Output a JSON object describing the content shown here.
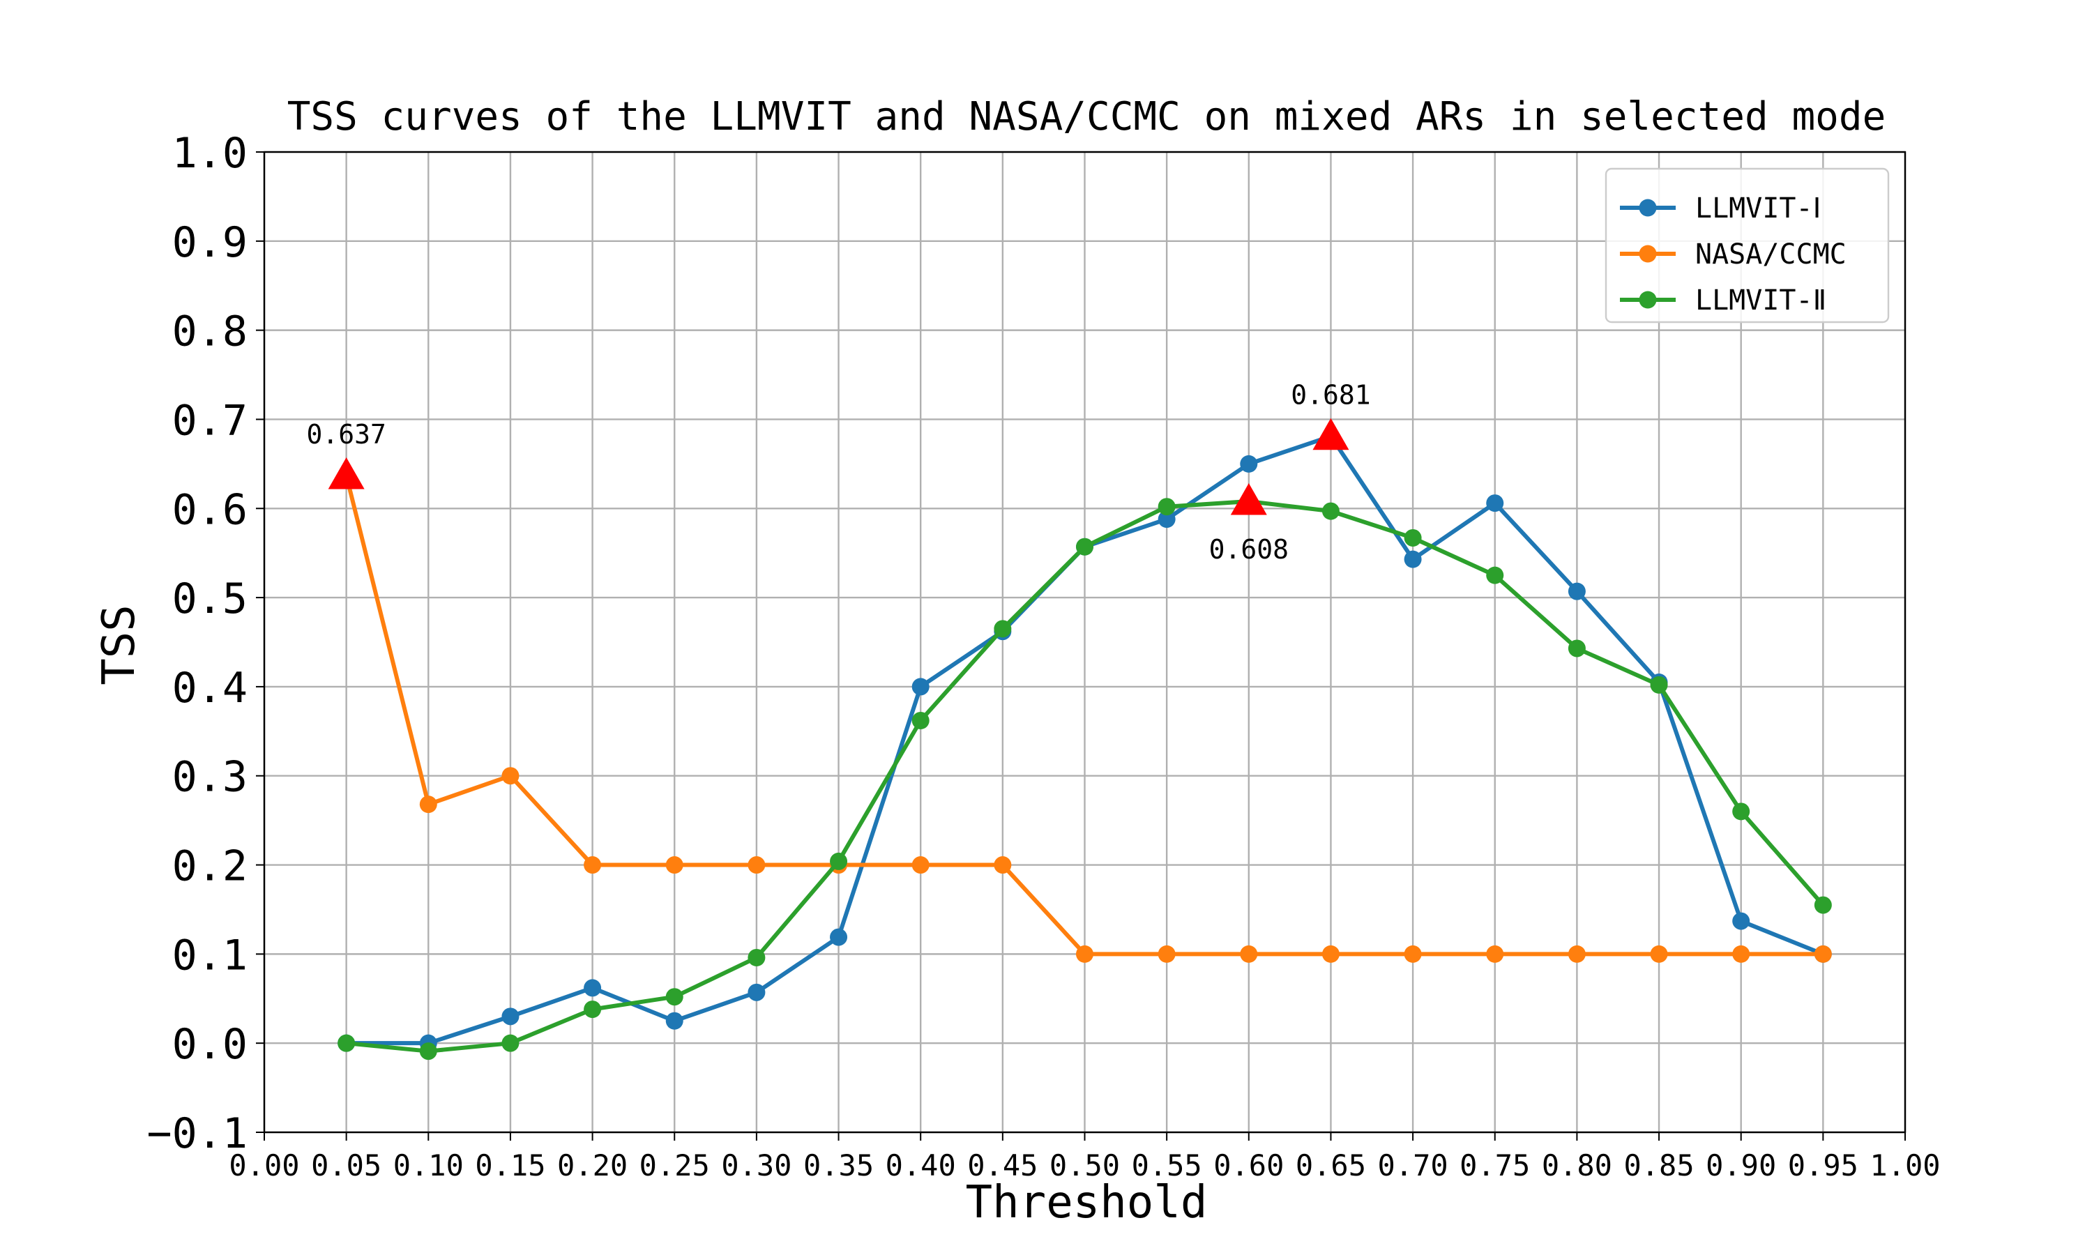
{
  "chart_data": {
    "type": "line",
    "title": "TSS curves of the LLMVIT and NASA/CCMC on mixed ARs in selected mode",
    "xlabel": "Threshold",
    "ylabel": "TSS",
    "xlim": [
      0.0,
      1.0
    ],
    "ylim": [
      -0.1,
      1.0
    ],
    "xticks": [
      "0.00",
      "0.05",
      "0.10",
      "0.15",
      "0.20",
      "0.25",
      "0.30",
      "0.35",
      "0.40",
      "0.45",
      "0.50",
      "0.55",
      "0.60",
      "0.65",
      "0.70",
      "0.75",
      "0.80",
      "0.85",
      "0.90",
      "0.95",
      "1.00"
    ],
    "yticks": [
      "−0.1",
      "0.0",
      "0.1",
      "0.2",
      "0.3",
      "0.4",
      "0.5",
      "0.6",
      "0.7",
      "0.8",
      "0.9",
      "1.0"
    ],
    "grid": true,
    "legend_position": "top-right",
    "x": [
      0.05,
      0.1,
      0.15,
      0.2,
      0.25,
      0.3,
      0.35,
      0.4,
      0.45,
      0.5,
      0.55,
      0.6,
      0.65,
      0.7,
      0.75,
      0.8,
      0.85,
      0.9,
      0.95
    ],
    "series": [
      {
        "name": "LLMVIT-Ⅰ",
        "color": "#1f77b4",
        "values": [
          0.0,
          0.0,
          0.03,
          0.062,
          0.025,
          0.057,
          0.119,
          0.4,
          0.462,
          0.557,
          0.588,
          0.65,
          0.681,
          0.543,
          0.606,
          0.507,
          0.405,
          0.137,
          0.1
        ]
      },
      {
        "name": "NASA/CCMC",
        "color": "#ff7f0e",
        "values": [
          0.637,
          0.268,
          0.3,
          0.2,
          0.2,
          0.2,
          0.2,
          0.2,
          0.2,
          0.1,
          0.1,
          0.1,
          0.1,
          0.1,
          0.1,
          0.1,
          0.1,
          0.1,
          0.1
        ]
      },
      {
        "name": "LLMVIT-Ⅱ",
        "color": "#2ca02c",
        "values": [
          0.0,
          -0.009,
          0.0,
          0.038,
          0.052,
          0.096,
          0.204,
          0.362,
          0.465,
          0.557,
          0.602,
          0.608,
          0.597,
          0.567,
          0.525,
          0.443,
          0.402,
          0.26,
          0.155
        ]
      }
    ],
    "annotations": [
      {
        "x": 0.05,
        "y": 0.637,
        "label": "0.637",
        "label_side": "above",
        "marker": "triangle",
        "color": "#ff0000"
      },
      {
        "x": 0.65,
        "y": 0.681,
        "label": "0.681",
        "label_side": "above",
        "marker": "triangle",
        "color": "#ff0000"
      },
      {
        "x": 0.6,
        "y": 0.608,
        "label": "0.608",
        "label_side": "below",
        "marker": "triangle",
        "color": "#ff0000"
      }
    ]
  }
}
